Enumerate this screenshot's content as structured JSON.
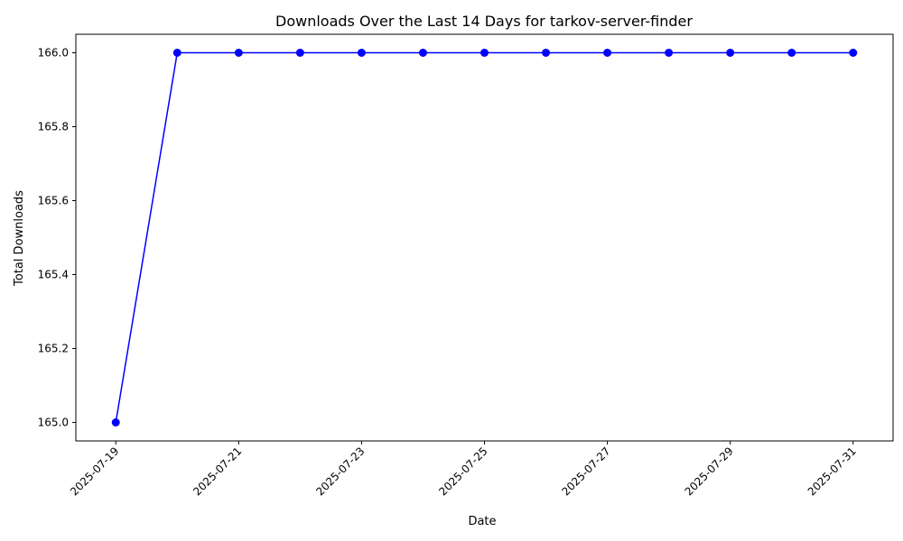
{
  "chart_data": {
    "type": "line",
    "title": "Downloads Over the Last 14 Days for tarkov-server-finder",
    "xlabel": "Date",
    "ylabel": "Total Downloads",
    "x": [
      "2025-07-19",
      "2025-07-20",
      "2025-07-21",
      "2025-07-22",
      "2025-07-23",
      "2025-07-24",
      "2025-07-25",
      "2025-07-26",
      "2025-07-27",
      "2025-07-28",
      "2025-07-29",
      "2025-07-30",
      "2025-07-31"
    ],
    "series": [
      {
        "values": [
          165,
          166,
          166,
          166,
          166,
          166,
          166,
          166,
          166,
          166,
          166,
          166,
          166
        ],
        "color": "#0000ff",
        "marker": "circle"
      }
    ],
    "xticks": [
      "2025-07-19",
      "2025-07-21",
      "2025-07-23",
      "2025-07-25",
      "2025-07-27",
      "2025-07-29",
      "2025-07-31"
    ],
    "yticks": [
      "165.0",
      "165.2",
      "165.4",
      "165.6",
      "165.8",
      "166.0"
    ],
    "ylim": [
      164.95,
      166.05
    ],
    "xlim": [
      "2025-07-18",
      "2025-08-01"
    ],
    "grid": false,
    "legend": "none",
    "xtick_rotation_deg": 45
  }
}
